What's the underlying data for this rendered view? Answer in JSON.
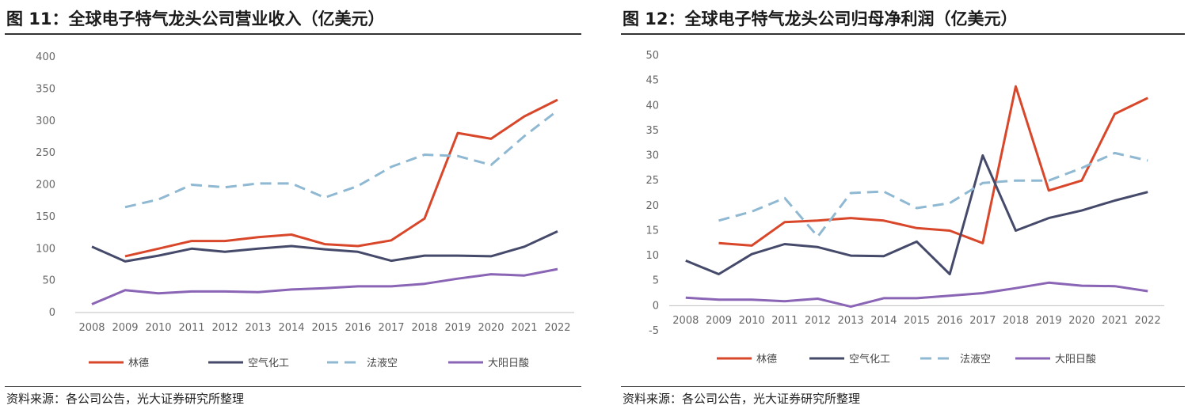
{
  "chart_data": [
    {
      "type": "line",
      "title": "图 11：全球电子特气龙头公司营业收入（亿美元）",
      "source": "资料来源：各公司公告，光大证券研究所整理",
      "categories": [
        "2008",
        "2009",
        "2010",
        "2011",
        "2012",
        "2013",
        "2014",
        "2015",
        "2016",
        "2017",
        "2018",
        "2019",
        "2020",
        "2021",
        "2022"
      ],
      "ylim": [
        0,
        400
      ],
      "yticks": [
        0,
        50,
        100,
        150,
        200,
        250,
        300,
        350,
        400
      ],
      "legend_position": "bottom",
      "grid": false,
      "series": [
        {
          "name": "林德",
          "color": "#d9472b",
          "dash": "solid",
          "values": [
            null,
            88,
            100,
            112,
            112,
            118,
            122,
            107,
            104,
            113,
            147,
            281,
            272,
            307,
            333
          ]
        },
        {
          "name": "空气化工",
          "color": "#454a6a",
          "dash": "solid",
          "values": [
            103,
            80,
            89,
            100,
            95,
            100,
            104,
            99,
            95,
            81,
            89,
            89,
            88,
            103,
            127
          ]
        },
        {
          "name": "法液空",
          "color": "#8fb8d2",
          "dash": "dashed",
          "values": [
            null,
            165,
            177,
            200,
            196,
            202,
            202,
            180,
            198,
            228,
            247,
            245,
            231,
            276,
            316
          ]
        },
        {
          "name": "大阳日酸",
          "color": "#8a64b5",
          "dash": "solid",
          "values": [
            13,
            35,
            30,
            33,
            33,
            32,
            36,
            38,
            41,
            41,
            45,
            53,
            60,
            58,
            68
          ]
        }
      ]
    },
    {
      "type": "line",
      "title": "图 12：全球电子特气龙头公司归母净利润（亿美元）",
      "source": "资料来源：各公司公告，光大证券研究所整理",
      "categories": [
        "2008",
        "2009",
        "2010",
        "2011",
        "2012",
        "2013",
        "2014",
        "2015",
        "2016",
        "2017",
        "2018",
        "2019",
        "2020",
        "2021",
        "2022"
      ],
      "ylim": [
        -5,
        50
      ],
      "yticks": [
        -5,
        0,
        5,
        10,
        15,
        20,
        25,
        30,
        35,
        40,
        45,
        50
      ],
      "legend_position": "bottom",
      "grid": false,
      "series": [
        {
          "name": "林德",
          "color": "#d9472b",
          "dash": "solid",
          "values": [
            null,
            12.5,
            12.0,
            16.7,
            17.0,
            17.5,
            17.0,
            15.5,
            15.0,
            12.5,
            43.8,
            23.0,
            25.0,
            38.3,
            41.5
          ]
        },
        {
          "name": "空气化工",
          "color": "#454a6a",
          "dash": "solid",
          "values": [
            9.0,
            6.3,
            10.3,
            12.3,
            11.7,
            10.0,
            9.9,
            12.8,
            6.3,
            30.0,
            15.0,
            17.5,
            19.0,
            21.0,
            22.7
          ]
        },
        {
          "name": "法液空",
          "color": "#8fb8d2",
          "dash": "dashed",
          "values": [
            null,
            17.0,
            18.8,
            21.5,
            13.8,
            22.5,
            22.8,
            19.5,
            20.5,
            24.5,
            25.0,
            25.0,
            27.5,
            30.5,
            29.0
          ]
        },
        {
          "name": "大阳日酸",
          "color": "#8a64b5",
          "dash": "solid",
          "values": [
            1.6,
            1.2,
            1.2,
            0.9,
            1.4,
            -0.2,
            1.5,
            1.5,
            2.0,
            2.5,
            3.5,
            4.6,
            4.0,
            3.9,
            2.9
          ]
        }
      ]
    }
  ]
}
